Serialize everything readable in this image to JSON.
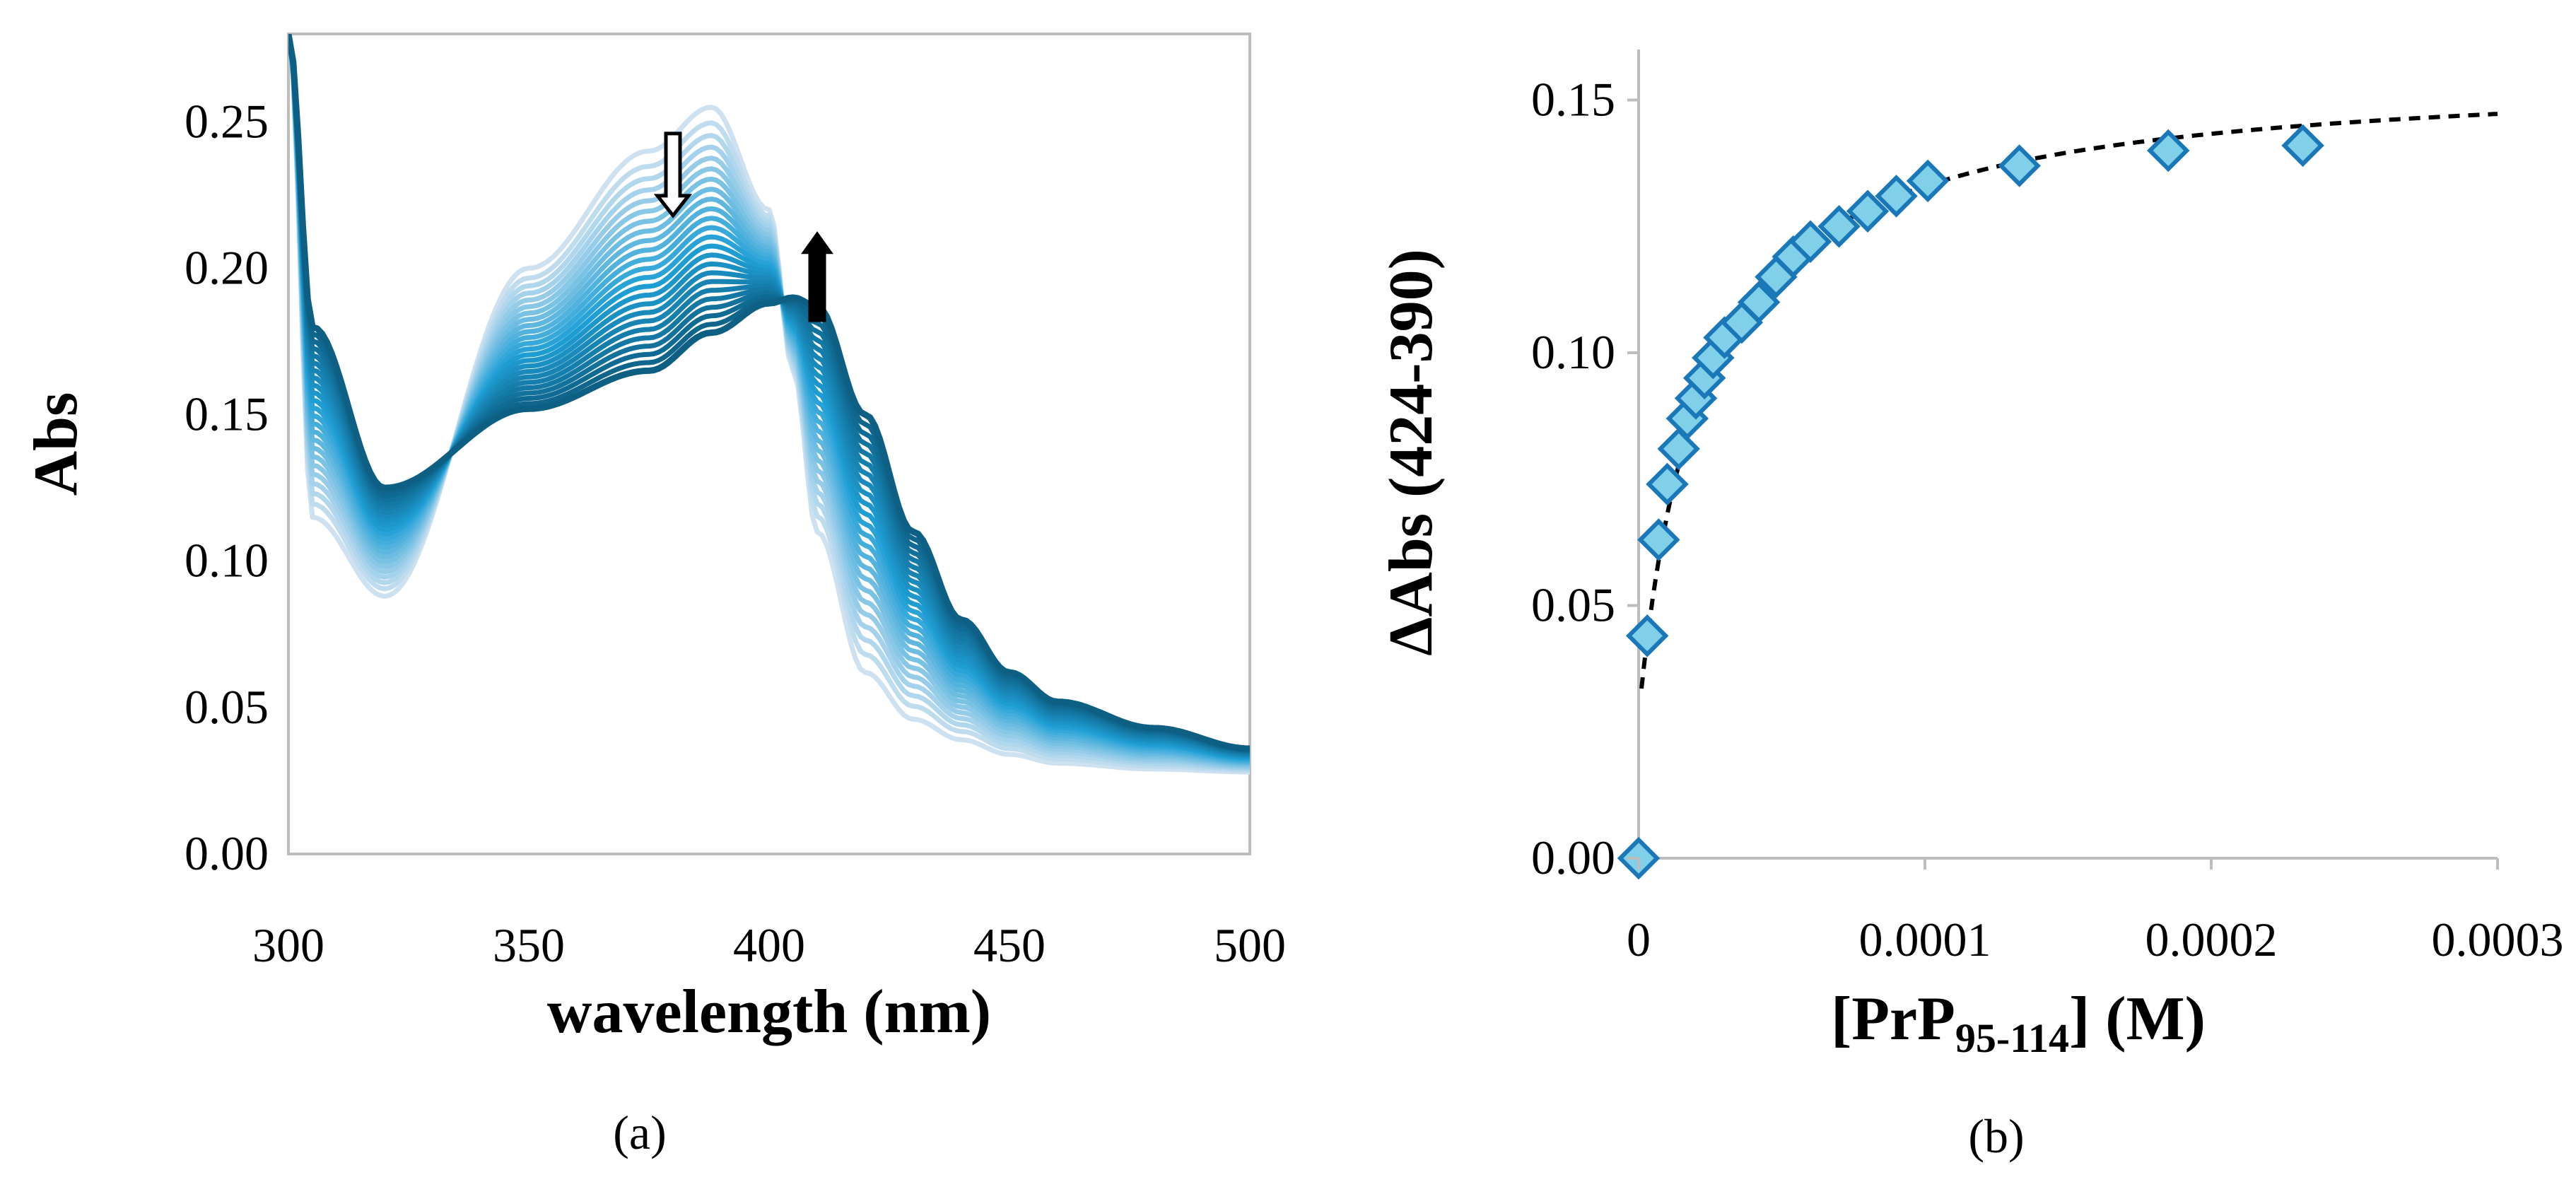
{
  "panel_a_label": "(a)",
  "panel_b_label": "(b)",
  "chart_data": [
    {
      "type": "line",
      "xlabel": "wavelength (nm)",
      "ylabel": "Abs",
      "xlim": [
        300,
        500
      ],
      "ylim": [
        0,
        0.28
      ],
      "x_ticks": [
        "300",
        "350",
        "400",
        "450",
        "500"
      ],
      "y_ticks": [
        "0.00",
        "0.05",
        "0.10",
        "0.15",
        "0.20",
        "0.25"
      ],
      "colors": {
        "initial": "#cde1f1",
        "middle": "#1f9fd6",
        "final": "#0d5f84"
      },
      "trend_arrows": [
        {
          "direction": "down",
          "at_wavelength": 380,
          "style": "hollow"
        },
        {
          "direction": "up",
          "at_wavelength": 410,
          "style": "filled"
        }
      ],
      "spectra_key_points": {
        "x": [
          300,
          305,
          320,
          350,
          375,
          388,
          400,
          405,
          410,
          420,
          430,
          440,
          450,
          460,
          480,
          500
        ],
        "first_spectrum": [
          0.28,
          0.115,
          0.088,
          0.2,
          0.24,
          0.255,
          0.22,
          0.165,
          0.11,
          0.062,
          0.046,
          0.039,
          0.034,
          0.031,
          0.029,
          0.028
        ],
        "last_spectrum": [
          0.28,
          0.18,
          0.125,
          0.152,
          0.165,
          0.178,
          0.188,
          0.19,
          0.187,
          0.15,
          0.11,
          0.08,
          0.062,
          0.052,
          0.043,
          0.036
        ]
      },
      "series_count": 24
    },
    {
      "type": "scatter",
      "xlabel": "[PrP₉₅₋₁₁₄] (M)",
      "ylabel": "ΔAbs (424-390)",
      "xlim": [
        0,
        0.0003
      ],
      "ylim": [
        0,
        0.16
      ],
      "x_ticks": [
        "0",
        "0.0001",
        "0.0002",
        "0.0003"
      ],
      "y_ticks": [
        "0.00",
        "0.05",
        "0.10",
        "0.15"
      ],
      "marker_fill": "#7fd0e8",
      "marker_stroke": "#1a78b8",
      "points": {
        "x": [
          0,
          3e-06,
          7e-06,
          1e-05,
          1.4e-05,
          1.7e-05,
          2e-05,
          2.3e-05,
          2.6e-05,
          3e-05,
          3.6e-05,
          4.2e-05,
          4.8e-05,
          5.4e-05,
          6e-05,
          7e-05,
          8e-05,
          9e-05,
          0.000101,
          0.000133,
          0.000185,
          0.000232
        ],
        "y": [
          0.0,
          0.044,
          0.063,
          0.074,
          0.081,
          0.087,
          0.091,
          0.095,
          0.099,
          0.103,
          0.106,
          0.11,
          0.115,
          0.119,
          0.122,
          0.125,
          0.128,
          0.131,
          0.134,
          0.137,
          0.14,
          0.141
        ]
      },
      "fit": {
        "style": "dashed",
        "color": "#000000",
        "x_start": 1e-06,
        "x_end": 0.0003
      }
    }
  ]
}
